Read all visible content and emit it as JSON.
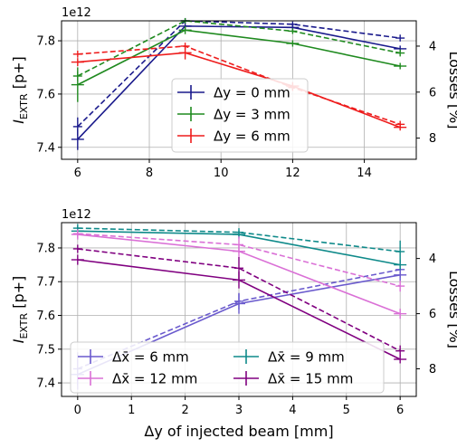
{
  "chart_data": [
    {
      "type": "line",
      "offset_label": "1e12",
      "ylabel_prefix": "I",
      "ylabel_sub": "EXTR",
      "ylabel_suffix": " [p+]",
      "y2label": "Losses [%]",
      "xlabel": "",
      "xlim": [
        5.55,
        15.45
      ],
      "ylim": [
        7.355,
        7.875
      ],
      "y2lim": [
        8.92,
        2.9
      ],
      "xticks": [
        6,
        8,
        10,
        12,
        14
      ],
      "yticks": [
        7.4,
        7.6,
        7.8
      ],
      "ytick_labels": [
        "7.4",
        "7.6",
        "7.8"
      ],
      "y2ticks": [
        4,
        6,
        8
      ],
      "grid": true,
      "legend": {
        "position": "center",
        "entries": [
          "Δy = 0 mm",
          "Δy = 3 mm",
          "Δy = 6 mm"
        ]
      },
      "series": [
        {
          "name": "Δy = 0 mm",
          "color": "#1a1a8c",
          "x": [
            6,
            9,
            12,
            15
          ],
          "values": [
            7.43,
            7.855,
            7.85,
            7.77
          ],
          "errors": [
            0.04,
            0.015,
            0.012,
            0.012
          ],
          "losses": [
            7.5,
            2.9,
            3.05,
            3.65
          ],
          "losses_errors": [
            0.4,
            0.12,
            0.12,
            0.15
          ]
        },
        {
          "name": "Δy = 3 mm",
          "color": "#1f8a1f",
          "x": [
            6,
            9,
            12,
            15
          ],
          "values": [
            7.635,
            7.84,
            7.79,
            7.705
          ],
          "errors": [
            0.065,
            0.015,
            0.012,
            0.012
          ],
          "losses": [
            5.3,
            2.9,
            3.35,
            4.3
          ],
          "losses_errors": [
            0.2,
            0.12,
            0.12,
            0.15
          ]
        },
        {
          "name": "Δy = 6 mm",
          "color": "#ee1c1c",
          "x": [
            6,
            9,
            12,
            15
          ],
          "values": [
            7.72,
            7.755,
            7.63,
            7.475
          ],
          "errors": [
            0.015,
            0.025,
            0.015,
            0.012
          ],
          "losses": [
            4.35,
            4.0,
            5.8,
            7.4
          ],
          "losses_errors": [
            0.15,
            0.15,
            0.15,
            0.15
          ]
        }
      ]
    },
    {
      "type": "line",
      "offset_label": "1e12",
      "ylabel_prefix": "I",
      "ylabel_sub": "EXTR",
      "ylabel_suffix": " [p+]",
      "y2label": "Losses [%]",
      "xlabel": "Δy of injected beam [mm]",
      "xlim": [
        -0.3,
        6.3
      ],
      "ylim": [
        7.36,
        7.875
      ],
      "y2lim": [
        9.0,
        2.7
      ],
      "xticks": [
        0,
        1,
        2,
        3,
        4,
        5,
        6
      ],
      "yticks": [
        7.4,
        7.5,
        7.6,
        7.7,
        7.8
      ],
      "ytick_labels": [
        "7.4",
        "7.5",
        "7.6",
        "7.7",
        "7.8"
      ],
      "y2ticks": [
        4,
        6,
        8
      ],
      "grid": true,
      "legend": {
        "position": "lower center",
        "columns": 2,
        "entries": [
          "Δx̄ = 6 mm",
          "Δx̄ = 9 mm",
          "Δx̄ = 12 mm",
          "Δx̄ = 15 mm"
        ]
      },
      "series": [
        {
          "name": "Δx̄ = 6 mm",
          "color": "#6a5acd",
          "x": [
            0,
            3,
            6
          ],
          "values": [
            7.425,
            7.635,
            7.72
          ],
          "errors": [
            0.045,
            0.03,
            0.02
          ],
          "losses": [
            8.0,
            5.55,
            4.4
          ],
          "losses_errors": [
            0.6,
            0.3,
            0.3
          ]
        },
        {
          "name": "Δx̄ = 9 mm",
          "color": "#0f8a8a",
          "x": [
            0,
            3,
            6
          ],
          "values": [
            7.85,
            7.84,
            7.75
          ],
          "errors": [
            0.015,
            0.012,
            0.015
          ],
          "losses": [
            2.9,
            3.05,
            3.75
          ],
          "losses_errors": [
            0.15,
            0.15,
            0.4
          ]
        },
        {
          "name": "Δx̄ = 12 mm",
          "color": "#da70d6",
          "x": [
            0,
            3,
            6
          ],
          "values": [
            7.84,
            7.79,
            7.605
          ],
          "errors": [
            0.015,
            0.02,
            0.015
          ],
          "losses": [
            3.1,
            3.5,
            5.0
          ],
          "losses_errors": [
            0.15,
            0.3,
            0.2
          ]
        },
        {
          "name": "Δx̄ = 15 mm",
          "color": "#800080",
          "x": [
            0,
            3,
            6
          ],
          "values": [
            7.765,
            7.705,
            7.47
          ],
          "errors": [
            0.015,
            0.025,
            0.012
          ],
          "losses": [
            3.65,
            4.35,
            7.35
          ],
          "losses_errors": [
            0.15,
            0.4,
            0.2
          ]
        }
      ]
    }
  ]
}
